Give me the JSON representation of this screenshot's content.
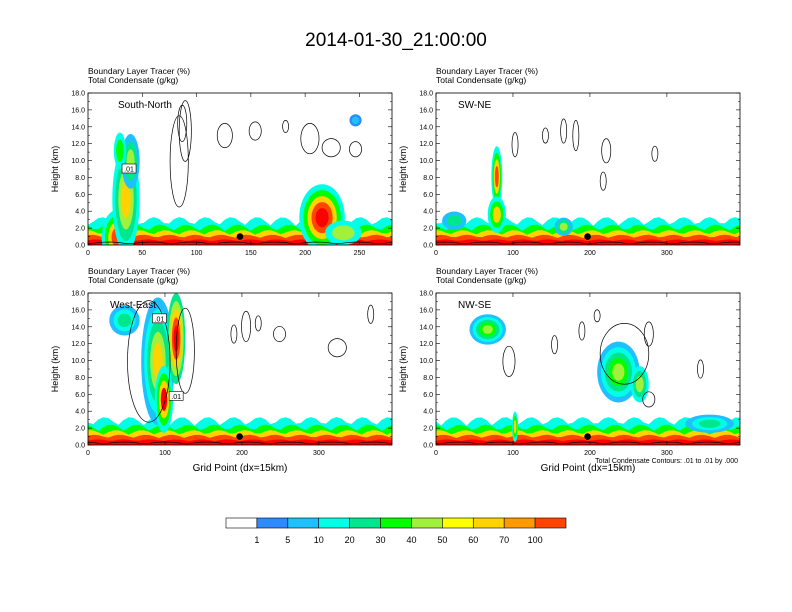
{
  "title": "2014-01-30_21:00:00",
  "chart_data": [
    {
      "type": "heatmap",
      "panel": "South-North",
      "title_lines": [
        "Boundary Layer Tracer   (%)",
        "Total Condensate   (g/kg)"
      ],
      "ylabel": "Height (km)",
      "xlabel": "",
      "xlim": [
        0,
        280
      ],
      "ylim": [
        0,
        18
      ],
      "xticks": [
        "0",
        "50",
        "100",
        "150",
        "200",
        "250"
      ],
      "yticks": [
        "0.0",
        "2.0",
        "4.0",
        "6.0",
        "8.0",
        "10.0",
        "12.0",
        "14.0",
        "16.0",
        "18.0"
      ],
      "contour_labels": [
        ".01"
      ],
      "marker": {
        "x": 140,
        "y": 1.0
      }
    },
    {
      "type": "heatmap",
      "panel": "SW-NE",
      "title_lines": [
        "Boundary Layer Tracer   (%)",
        "Total Condensate   (g/kg)"
      ],
      "ylabel": "Height (km)",
      "xlabel": "",
      "xlim": [
        0,
        395
      ],
      "ylim": [
        0,
        18
      ],
      "xticks": [
        "0",
        "100",
        "200",
        "300"
      ],
      "yticks": [
        "0.0",
        "2.0",
        "4.0",
        "6.0",
        "8.0",
        "10.0",
        "12.0",
        "14.0",
        "16.0",
        "18.0"
      ],
      "contour_labels": [],
      "marker": {
        "x": 197,
        "y": 1.0
      }
    },
    {
      "type": "heatmap",
      "panel": "West-East",
      "title_lines": [
        "Boundary Layer Tracer   (%)",
        "Total Condensate   (g/kg)"
      ],
      "ylabel": "Height (km)",
      "xlabel": "Grid Point (dx=15km)",
      "xlim": [
        0,
        395
      ],
      "ylim": [
        0,
        18
      ],
      "xticks": [
        "0",
        "100",
        "200",
        "300"
      ],
      "yticks": [
        "0.0",
        "2.0",
        "4.0",
        "6.0",
        "8.0",
        "10.0",
        "12.0",
        "14.0",
        "16.0",
        "18.0"
      ],
      "contour_labels": [
        ".01",
        ".01"
      ],
      "marker": {
        "x": 197,
        "y": 1.0
      }
    },
    {
      "type": "heatmap",
      "panel": "NW-SE",
      "title_lines": [
        "Boundary Layer Tracer   (%)",
        "Total Condensate   (g/kg)"
      ],
      "ylabel": "Height (km)",
      "xlabel": "Grid Point (dx=15km)",
      "xlim": [
        0,
        395
      ],
      "ylim": [
        0,
        18
      ],
      "xticks": [
        "0",
        "100",
        "200",
        "300"
      ],
      "yticks": [
        "0.0",
        "2.0",
        "4.0",
        "6.0",
        "8.0",
        "10.0",
        "12.0",
        "14.0",
        "16.0",
        "18.0"
      ],
      "contour_labels": [],
      "marker": {
        "x": 197,
        "y": 1.0
      },
      "footnote": "Total Condensate Contours: .01 to .01 by .000"
    }
  ],
  "colorbar": {
    "labels": [
      "1",
      "5",
      "10",
      "20",
      "30",
      "40",
      "50",
      "60",
      "70",
      "100"
    ],
    "colors": [
      "#ffffff",
      "#2e8bff",
      "#1ec0ff",
      "#00ffe6",
      "#00e68c",
      "#00ff00",
      "#a0f03c",
      "#ffff00",
      "#ffd200",
      "#ff9900",
      "#ff4500",
      "#ff0000"
    ]
  },
  "colors": {
    "contour": "#000000",
    "marker": "#000000"
  }
}
